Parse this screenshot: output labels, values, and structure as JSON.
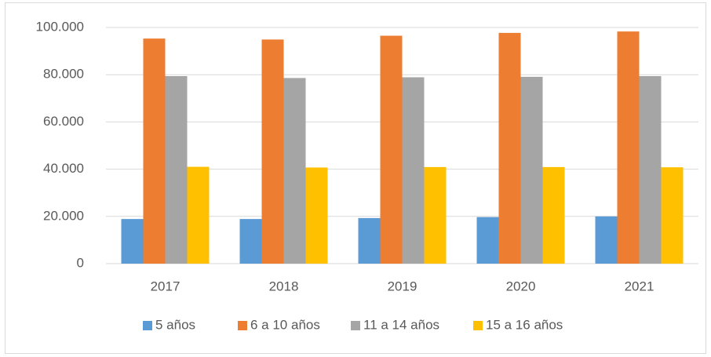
{
  "chart_data": {
    "type": "bar",
    "categories": [
      "2017",
      "2018",
      "2019",
      "2020",
      "2021"
    ],
    "series": [
      {
        "name": "5 años",
        "color": "#5b9bd5",
        "values": [
          18900,
          18900,
          19300,
          19700,
          20000
        ]
      },
      {
        "name": "6 a 10 años",
        "color": "#ed7d31",
        "values": [
          95300,
          94900,
          96500,
          97700,
          98300
        ]
      },
      {
        "name": "11 a 14 años",
        "color": "#a5a5a5",
        "values": [
          79400,
          78600,
          78900,
          79100,
          79400
        ]
      },
      {
        "name": "15 a 16 años",
        "color": "#ffc000",
        "values": [
          41000,
          40700,
          40900,
          40900,
          40800
        ]
      }
    ],
    "ylim": [
      0,
      100000
    ],
    "yticks": [
      0,
      {
        "value": 20000,
        "label": "20.000"
      },
      {
        "value": 40000,
        "label": "40.000"
      },
      {
        "value": 60000,
        "label": "60.000"
      },
      {
        "value": 80000,
        "label": "80.000"
      },
      {
        "value": 100000,
        "label": "100.000"
      }
    ],
    "grid": true,
    "legend": "bottom"
  }
}
